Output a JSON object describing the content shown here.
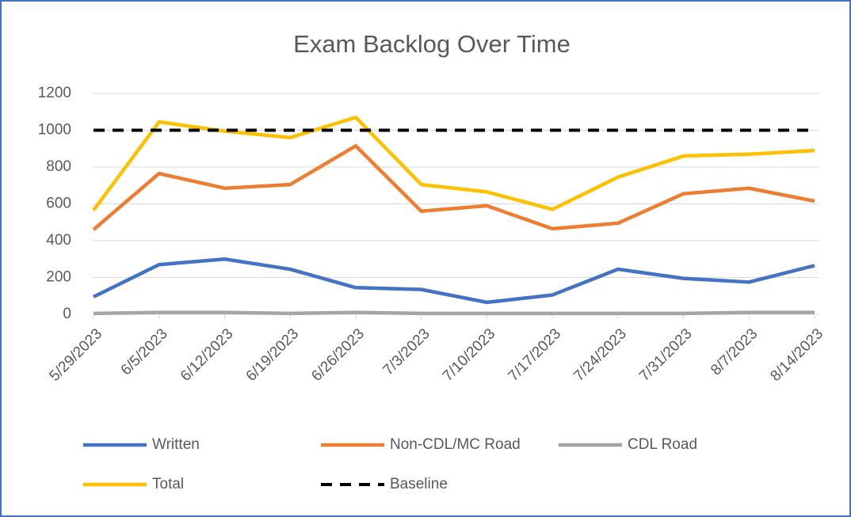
{
  "chart_data": {
    "type": "line",
    "title": "Exam Backlog Over Time",
    "categories": [
      "5/29/2023",
      "6/5/2023",
      "6/12/2023",
      "6/19/2023",
      "6/26/2023",
      "7/3/2023",
      "7/10/2023",
      "7/17/2023",
      "7/24/2023",
      "7/31/2023",
      "8/7/2023",
      "8/14/2023"
    ],
    "series": [
      {
        "name": "Written",
        "color": "#4472c4",
        "values": [
          95,
          270,
          300,
          245,
          145,
          135,
          65,
          105,
          245,
          195,
          175,
          265
        ]
      },
      {
        "name": "Non-CDL/MC Road",
        "color": "#ed7d31",
        "values": [
          460,
          765,
          685,
          705,
          915,
          560,
          590,
          465,
          495,
          655,
          685,
          615
        ]
      },
      {
        "name": "CDL Road",
        "color": "#a5a5a5",
        "values": [
          5,
          10,
          10,
          5,
          10,
          5,
          5,
          5,
          5,
          5,
          10,
          10
        ]
      },
      {
        "name": "Total",
        "color": "#ffc000",
        "values": [
          565,
          1045,
          995,
          960,
          1070,
          705,
          665,
          570,
          745,
          860,
          870,
          890
        ]
      },
      {
        "name": "Baseline",
        "color": "#000000",
        "dashed": true,
        "values": [
          1000,
          1000,
          1000,
          1000,
          1000,
          1000,
          1000,
          1000,
          1000,
          1000,
          1000,
          1000
        ]
      }
    ],
    "ylim": [
      0,
      1200
    ],
    "yticks": [
      0,
      200,
      400,
      600,
      800,
      1000,
      1200
    ],
    "grid": true,
    "legend": "bottom"
  }
}
